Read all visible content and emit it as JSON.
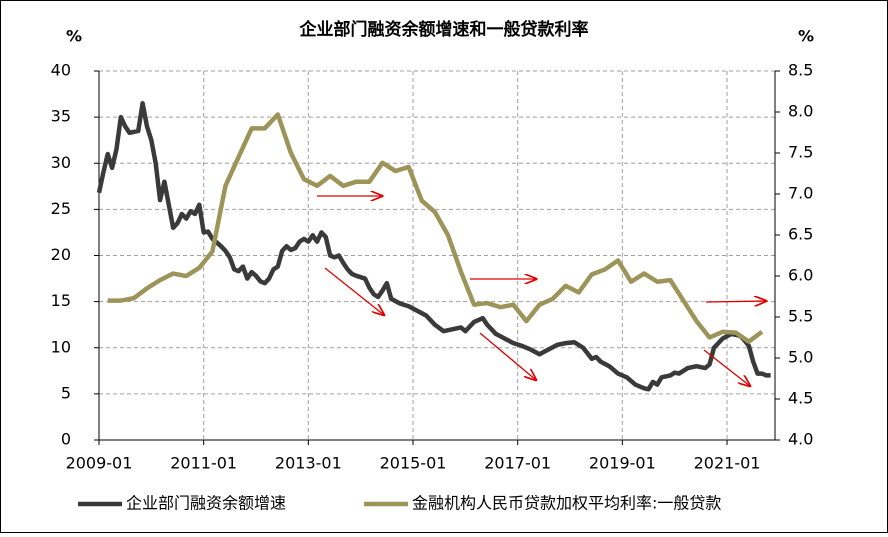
{
  "chart_data": {
    "type": "line",
    "title": "企业部门融资余额增速和一般贷款利率",
    "y_label": "%",
    "y2_label": "%",
    "xlim": [
      "2009-01",
      "2021-12"
    ],
    "xticks": [
      "2009-01",
      "2011-01",
      "2013-01",
      "2015-01",
      "2017-01",
      "2019-01",
      "2021-01"
    ],
    "ylim": [
      0,
      40
    ],
    "yticks": [
      0,
      5,
      10,
      15,
      20,
      25,
      30,
      35,
      40
    ],
    "y2lim": [
      4.0,
      8.5
    ],
    "y2ticks": [
      {
        "value": 4.0,
        "label": "4.0"
      },
      {
        "value": 4.5,
        "label": "4.5"
      },
      {
        "value": 5.0,
        "label": "5.0"
      },
      {
        "value": 5.5,
        "label": "5.5"
      },
      {
        "value": 6.0,
        "label": "6.0"
      },
      {
        "value": 6.5,
        "label": "6.5"
      },
      {
        "value": 7.0,
        "label": "7.0"
      },
      {
        "value": 7.5,
        "label": "7.5"
      },
      {
        "value": 8.0,
        "label": "8.0"
      },
      {
        "value": 8.5,
        "label": "8.5"
      }
    ],
    "grid": true,
    "legend": "bottom",
    "series": [
      {
        "name": "企业部门融资余额增速",
        "color": "#3a3a3a",
        "axis": "y",
        "x": [
          "2009-01",
          "2009-02",
          "2009-03",
          "2009-04",
          "2009-05",
          "2009-06",
          "2009-07",
          "2009-08",
          "2009-10",
          "2009-11",
          "2009-12",
          "2010-01",
          "2010-02",
          "2010-03",
          "2010-04",
          "2010-05",
          "2010-06",
          "2010-07",
          "2010-08",
          "2010-09",
          "2010-10",
          "2010-11",
          "2010-12",
          "2011-01",
          "2011-02",
          "2011-03",
          "2011-05",
          "2011-06",
          "2011-07",
          "2011-08",
          "2011-09",
          "2011-10",
          "2011-11",
          "2011-12",
          "2012-01",
          "2012-02",
          "2012-03",
          "2012-04",
          "2012-05",
          "2012-06",
          "2012-07",
          "2012-08",
          "2012-09",
          "2012-10",
          "2012-11",
          "2012-12",
          "2013-01",
          "2013-02",
          "2013-03",
          "2013-04",
          "2013-05",
          "2013-06",
          "2013-07",
          "2013-08",
          "2013-09",
          "2013-10",
          "2013-11",
          "2013-12",
          "2014-02",
          "2014-03",
          "2014-04",
          "2014-05",
          "2014-06",
          "2014-07",
          "2014-08",
          "2014-10",
          "2014-12",
          "2015-02",
          "2015-04",
          "2015-06",
          "2015-08",
          "2015-10",
          "2015-12",
          "2016-01",
          "2016-03",
          "2016-05",
          "2016-06",
          "2016-08",
          "2016-10",
          "2016-12",
          "2017-02",
          "2017-04",
          "2017-06",
          "2017-08",
          "2017-10",
          "2017-12",
          "2018-02",
          "2018-04",
          "2018-06",
          "2018-07",
          "2018-08",
          "2018-10",
          "2018-12",
          "2019-02",
          "2019-04",
          "2019-06",
          "2019-07",
          "2019-08",
          "2019-09",
          "2019-10",
          "2019-12",
          "2020-01",
          "2020-02",
          "2020-04",
          "2020-06",
          "2020-08",
          "2020-09",
          "2020-10",
          "2020-12",
          "2021-02",
          "2021-04",
          "2021-05",
          "2021-06",
          "2021-07",
          "2021-08",
          "2021-09",
          "2021-10",
          "2021-11"
        ],
        "values": [
          26.8,
          29,
          31,
          29.5,
          31.5,
          35,
          34,
          33.3,
          33.5,
          36.5,
          34,
          32.5,
          30,
          26,
          28,
          25.5,
          23,
          23.5,
          24.5,
          24,
          24.8,
          24.5,
          25.5,
          22.5,
          22.6,
          21.8,
          21,
          20.5,
          19.8,
          18.5,
          18.3,
          18.8,
          17.5,
          18.2,
          17.8,
          17.2,
          17,
          17.5,
          18.5,
          18.8,
          20.5,
          21,
          20.6,
          20.8,
          21.5,
          21.8,
          21.5,
          22.2,
          21.5,
          22.5,
          22,
          20,
          19.8,
          20,
          19.2,
          18.5,
          18,
          17.8,
          17.5,
          16.5,
          15.8,
          15.5,
          16.2,
          17,
          15.3,
          14.8,
          14.5,
          14,
          13.5,
          12.5,
          11.8,
          12,
          12.2,
          11.8,
          12.8,
          13.2,
          12.5,
          11.5,
          11,
          10.5,
          10.2,
          9.8,
          9.3,
          9.8,
          10.3,
          10.5,
          10.6,
          10,
          8.8,
          9,
          8.5,
          8,
          7.2,
          6.8,
          6,
          5.6,
          5.5,
          6.3,
          6,
          6.8,
          7,
          7.3,
          7.2,
          7.8,
          8,
          7.8,
          8.2,
          10,
          11,
          11.5,
          11.3,
          10.8,
          10.2,
          8.5,
          7.2,
          7.2,
          7,
          7
        ]
      },
      {
        "name": "金融机构人民币贷款加权平均利率:一般贷款",
        "color": "#9c9459",
        "axis": "y2",
        "x": [
          "2009-03",
          "2009-06",
          "2009-09",
          "2009-12",
          "2010-03",
          "2010-06",
          "2010-09",
          "2010-12",
          "2011-03",
          "2011-06",
          "2011-09",
          "2011-12",
          "2012-03",
          "2012-06",
          "2012-09",
          "2012-12",
          "2013-03",
          "2013-06",
          "2013-09",
          "2013-12",
          "2014-03",
          "2014-06",
          "2014-09",
          "2014-12",
          "2015-03",
          "2015-06",
          "2015-09",
          "2015-12",
          "2016-03",
          "2016-06",
          "2016-09",
          "2016-12",
          "2017-03",
          "2017-06",
          "2017-09",
          "2017-12",
          "2018-03",
          "2018-06",
          "2018-09",
          "2018-12",
          "2019-03",
          "2019-06",
          "2019-09",
          "2019-12",
          "2020-03",
          "2020-06",
          "2020-09",
          "2020-12",
          "2021-03",
          "2021-06",
          "2021-09"
        ],
        "values": [
          5.7,
          5.7,
          5.73,
          5.85,
          5.95,
          6.03,
          6.0,
          6.1,
          6.3,
          7.1,
          7.45,
          7.8,
          7.8,
          7.97,
          7.5,
          7.18,
          7.1,
          7.22,
          7.1,
          7.15,
          7.15,
          7.38,
          7.28,
          7.33,
          6.92,
          6.78,
          6.5,
          6.05,
          5.65,
          5.67,
          5.62,
          5.65,
          5.45,
          5.65,
          5.72,
          5.88,
          5.8,
          6.02,
          6.08,
          6.19,
          5.93,
          6.03,
          5.93,
          5.95,
          5.7,
          5.45,
          5.25,
          5.32,
          5.31,
          5.2,
          5.32
        ]
      }
    ]
  }
}
